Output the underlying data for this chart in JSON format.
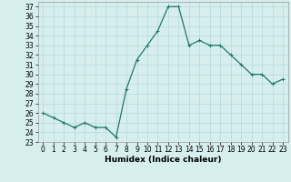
{
  "x": [
    0,
    1,
    2,
    3,
    4,
    5,
    6,
    7,
    8,
    9,
    10,
    11,
    12,
    13,
    14,
    15,
    16,
    17,
    18,
    19,
    20,
    21,
    22,
    23
  ],
  "y": [
    26,
    25.5,
    25,
    24.5,
    25,
    24.5,
    24.5,
    23.5,
    28.5,
    31.5,
    33,
    34.5,
    37,
    37,
    33,
    33.5,
    33,
    33,
    32,
    31,
    30,
    30,
    29,
    29.5
  ],
  "line_color": "#1a7a6a",
  "marker": "+",
  "marker_size": 3,
  "bg_color": "#d6eeee",
  "grid_color": "#b8d8d8",
  "xlabel": "Humidex (Indice chaleur)",
  "ylim": [
    23,
    37.5
  ],
  "xlim": [
    -0.5,
    23.5
  ],
  "yticks": [
    23,
    24,
    25,
    26,
    27,
    28,
    29,
    30,
    31,
    32,
    33,
    34,
    35,
    36,
    37
  ],
  "xticks": [
    0,
    1,
    2,
    3,
    4,
    5,
    6,
    7,
    8,
    9,
    10,
    11,
    12,
    13,
    14,
    15,
    16,
    17,
    18,
    19,
    20,
    21,
    22,
    23
  ],
  "tick_fontsize": 5.5,
  "xlabel_fontsize": 6.5,
  "line_width": 0.9,
  "marker_edge_width": 0.7
}
